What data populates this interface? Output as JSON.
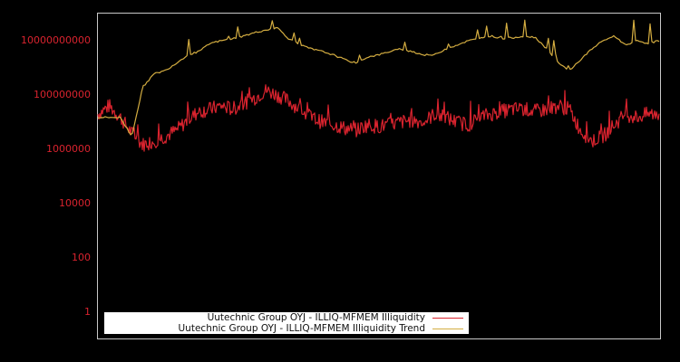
{
  "chart_data": {
    "type": "line",
    "title": "",
    "xlabel": "",
    "ylabel": "",
    "yscale": "log",
    "ylim": [
      0.3,
      100000000000.0
    ],
    "y_ticks": [
      "10000000000",
      "100000000",
      "1000000",
      "10000",
      "100",
      "1"
    ],
    "y_tick_values": [
      10000000000.0,
      100000000.0,
      1000000.0,
      10000.0,
      100.0,
      1
    ],
    "x_ticks": [],
    "grid": false,
    "legend_position": "lower left",
    "colors": {
      "illiquidity": "#d9232e",
      "trend": "#d4ad41",
      "tick_labels": "#d9232e",
      "frame": "#c8c8c8",
      "background": "#000000"
    },
    "series": [
      {
        "name": "Uutechnic Group OYJ - ILLIQ-MFMEM Illiquidity",
        "color": "#d9232e",
        "x_frac": [
          0.0,
          0.02,
          0.04,
          0.06,
          0.08,
          0.1,
          0.12,
          0.14,
          0.16,
          0.18,
          0.2,
          0.22,
          0.24,
          0.26,
          0.28,
          0.3,
          0.32,
          0.34,
          0.36,
          0.38,
          0.4,
          0.42,
          0.44,
          0.46,
          0.48,
          0.5,
          0.52,
          0.54,
          0.56,
          0.58,
          0.6,
          0.62,
          0.64,
          0.66,
          0.68,
          0.7,
          0.72,
          0.74,
          0.76,
          0.78,
          0.8,
          0.82,
          0.84,
          0.86,
          0.88,
          0.9,
          0.92,
          0.94,
          0.96,
          0.98,
          1.0
        ],
        "values": [
          20000000.0,
          40000000.0,
          15000000.0,
          4000000.0,
          1500000.0,
          2000000.0,
          3000000.0,
          5000000.0,
          12000000.0,
          25000000.0,
          30000000.0,
          40000000.0,
          30000000.0,
          50000000.0,
          80000000.0,
          150000000.0,
          100000000.0,
          60000000.0,
          30000000.0,
          15000000.0,
          10000000.0,
          8000000.0,
          6000000.0,
          5000000.0,
          8000000.0,
          7000000.0,
          8000000.0,
          10000000.0,
          12000000.0,
          10000000.0,
          20000000.0,
          15000000.0,
          10000000.0,
          8000000.0,
          15000000.0,
          20000000.0,
          25000000.0,
          30000000.0,
          30000000.0,
          25000000.0,
          30000000.0,
          40000000.0,
          30000000.0,
          5000000.0,
          2000000.0,
          3000000.0,
          8000000.0,
          20000000.0,
          15000000.0,
          20000000.0,
          20000000.0
        ]
      },
      {
        "name": "Uutechnic Group OYJ - ILLIQ-MFMEM Illiquidity Trend",
        "color": "#d4ad41",
        "x_frac": [
          0.0,
          0.02,
          0.04,
          0.06,
          0.08,
          0.1,
          0.12,
          0.14,
          0.16,
          0.18,
          0.2,
          0.22,
          0.24,
          0.26,
          0.28,
          0.3,
          0.32,
          0.34,
          0.36,
          0.38,
          0.4,
          0.42,
          0.44,
          0.46,
          0.48,
          0.5,
          0.52,
          0.54,
          0.56,
          0.58,
          0.6,
          0.62,
          0.64,
          0.66,
          0.68,
          0.7,
          0.72,
          0.74,
          0.76,
          0.78,
          0.8,
          0.82,
          0.84,
          0.86,
          0.88,
          0.9,
          0.92,
          0.94,
          0.96,
          0.98,
          1.0
        ],
        "values": [
          15000000.0,
          15000000.0,
          15000000.0,
          3000000.0,
          200000000.0,
          600000000.0,
          800000000.0,
          1500000000.0,
          3000000000.0,
          4000000000.0,
          8000000000.0,
          10000000000.0,
          12000000000.0,
          15000000000.0,
          20000000000.0,
          25000000000.0,
          30000000000.0,
          12000000000.0,
          7000000000.0,
          5000000000.0,
          4000000000.0,
          3000000000.0,
          2000000000.0,
          1500000000.0,
          2500000000.0,
          3000000000.0,
          4000000000.0,
          5000000000.0,
          4000000000.0,
          3000000000.0,
          3000000000.0,
          5000000000.0,
          7000000000.0,
          10000000000.0,
          12000000000.0,
          15000000000.0,
          12000000000.0,
          13000000000.0,
          15000000000.0,
          13000000000.0,
          5000000000.0,
          1500000000.0,
          800000000.0,
          2000000000.0,
          5000000000.0,
          10000000000.0,
          15000000000.0,
          7000000000.0,
          10000000000.0,
          8000000000.0,
          10000000000.0
        ]
      }
    ]
  },
  "axes": {
    "y_ticks": [
      "10000000000",
      "100000000",
      "1000000",
      "10000",
      "100",
      "1"
    ]
  },
  "legend": {
    "items": [
      {
        "label": "Uutechnic Group OYJ - ILLIQ-MFMEM Illiquidity",
        "color": "#d9232e"
      },
      {
        "label": "Uutechnic Group OYJ - ILLIQ-MFMEM Illiquidity Trend",
        "color": "#d4ad41"
      }
    ]
  }
}
